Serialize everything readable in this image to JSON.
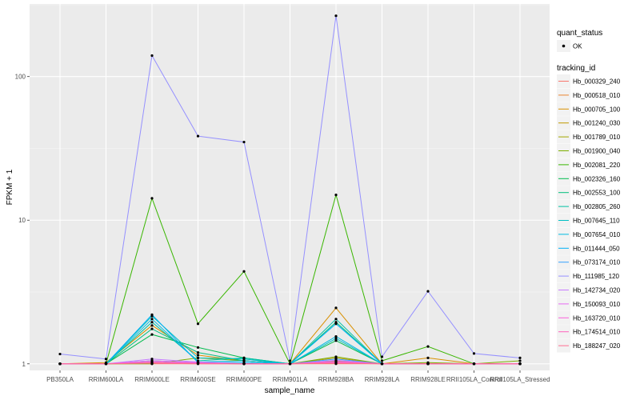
{
  "chart_data": {
    "type": "line",
    "title": "",
    "xlabel": "sample_name",
    "ylabel": "FPKM + 1",
    "y_scale": "log10",
    "ylim": [
      0.9,
      320
    ],
    "y_ticks": [
      1,
      10,
      100
    ],
    "y_tick_labels": [
      "1",
      "10",
      "100"
    ],
    "categories": [
      "PB350LA",
      "RRIM600LA",
      "RRIM600LE",
      "RRIM600SE",
      "RRIM600PE",
      "RRIM901LA",
      "RRIM928BA",
      "RRIM928LA",
      "RRIM928LE",
      "RRII105LA_Control",
      "RRII105LA_Stressed"
    ],
    "grid": true,
    "legend_position": "right",
    "legend_groups": [
      {
        "title": "quant_status",
        "entries": [
          "OK"
        ]
      },
      {
        "title": "tracking_id"
      }
    ],
    "series": [
      {
        "name": "Hb_000329_240",
        "color": "#F8766D",
        "values": [
          1.0,
          1.0,
          1.0,
          1.0,
          1.0,
          1.0,
          1.0,
          1.0,
          1.0,
          1.0,
          1.0
        ]
      },
      {
        "name": "Hb_000518_010",
        "color": "#EA8331",
        "values": [
          1.0,
          1.0,
          1.02,
          1.01,
          1.0,
          1.0,
          1.03,
          1.0,
          1.0,
          1.0,
          1.0
        ]
      },
      {
        "name": "Hb_000705_100",
        "color": "#D89000",
        "values": [
          1.0,
          1.02,
          1.85,
          1.15,
          1.05,
          1.0,
          2.45,
          1.0,
          1.1,
          1.0,
          1.0
        ]
      },
      {
        "name": "Hb_001240_030",
        "color": "#C09B00",
        "values": [
          1.0,
          1.0,
          1.05,
          1.02,
          1.0,
          1.0,
          1.1,
          1.0,
          1.0,
          1.0,
          1.0
        ]
      },
      {
        "name": "Hb_001789_010",
        "color": "#A3A500",
        "values": [
          1.0,
          1.0,
          1.03,
          1.01,
          1.0,
          1.0,
          1.05,
          1.0,
          1.0,
          1.0,
          1.0
        ]
      },
      {
        "name": "Hb_001900_040",
        "color": "#7CAE00",
        "values": [
          1.0,
          1.0,
          1.0,
          1.1,
          1.05,
          1.0,
          1.12,
          1.0,
          1.02,
          1.0,
          1.05
        ]
      },
      {
        "name": "Hb_002081_220",
        "color": "#39B600",
        "values": [
          1.0,
          1.0,
          14.2,
          1.9,
          4.4,
          1.0,
          15.0,
          1.05,
          1.32,
          1.0,
          1.0
        ]
      },
      {
        "name": "Hb_002326_160",
        "color": "#00BB4E",
        "values": [
          1.0,
          1.0,
          1.6,
          1.3,
          1.1,
          1.0,
          1.45,
          1.0,
          1.0,
          1.0,
          1.0
        ]
      },
      {
        "name": "Hb_002553_100",
        "color": "#00BF7D",
        "values": [
          1.0,
          1.0,
          1.75,
          1.2,
          1.05,
          1.0,
          1.95,
          1.0,
          1.0,
          1.0,
          1.0
        ]
      },
      {
        "name": "Hb_002805_260",
        "color": "#00C1A3",
        "values": [
          1.0,
          1.0,
          1.95,
          1.05,
          1.1,
          1.0,
          2.05,
          1.0,
          1.0,
          1.0,
          1.0
        ]
      },
      {
        "name": "Hb_007645_110",
        "color": "#00BFC4",
        "values": [
          1.0,
          1.0,
          2.15,
          1.1,
          1.08,
          1.0,
          1.5,
          1.0,
          1.0,
          1.0,
          1.0
        ]
      },
      {
        "name": "Hb_007654_010",
        "color": "#00BAE0",
        "values": [
          1.0,
          1.0,
          2.05,
          1.03,
          1.05,
          1.0,
          1.55,
          1.0,
          1.0,
          1.0,
          1.0
        ]
      },
      {
        "name": "Hb_011444_050",
        "color": "#00B0F6",
        "values": [
          1.0,
          1.0,
          2.2,
          1.02,
          1.02,
          1.0,
          1.9,
          1.0,
          1.0,
          1.0,
          1.0
        ]
      },
      {
        "name": "Hb_073174_010",
        "color": "#35A2FF",
        "values": [
          1.0,
          1.0,
          1.05,
          1.02,
          1.0,
          1.0,
          1.08,
          1.0,
          1.0,
          1.0,
          1.0
        ]
      },
      {
        "name": "Hb_111985_120",
        "color": "#9590FF",
        "values": [
          1.17,
          1.08,
          140.0,
          38.5,
          35.0,
          1.05,
          265.0,
          1.12,
          3.2,
          1.18,
          1.1
        ]
      },
      {
        "name": "Hb_142734_020",
        "color": "#C77CFF",
        "values": [
          1.0,
          1.0,
          1.08,
          1.03,
          1.0,
          1.0,
          1.06,
          1.0,
          1.0,
          1.0,
          1.0
        ]
      },
      {
        "name": "Hb_150093_010",
        "color": "#E76BF3",
        "values": [
          1.0,
          1.0,
          1.05,
          1.02,
          1.0,
          1.0,
          1.04,
          1.0,
          1.0,
          1.0,
          1.0
        ]
      },
      {
        "name": "Hb_163720_010",
        "color": "#FA62DB",
        "values": [
          1.0,
          1.0,
          1.03,
          1.01,
          1.0,
          1.0,
          1.02,
          1.0,
          1.0,
          1.0,
          1.0
        ]
      },
      {
        "name": "Hb_174514_010",
        "color": "#FF62BC",
        "values": [
          1.0,
          1.0,
          1.02,
          1.01,
          1.0,
          1.0,
          1.03,
          1.0,
          1.0,
          1.0,
          1.0
        ]
      },
      {
        "name": "Hb_188247_020",
        "color": "#FF6C91",
        "values": [
          1.0,
          1.0,
          1.01,
          1.0,
          1.0,
          1.0,
          1.01,
          1.0,
          1.0,
          1.0,
          1.0
        ]
      }
    ]
  },
  "colors": {
    "panel_bg": "#EBEBEB",
    "grid_major": "#FFFFFF",
    "point": "#000000"
  }
}
